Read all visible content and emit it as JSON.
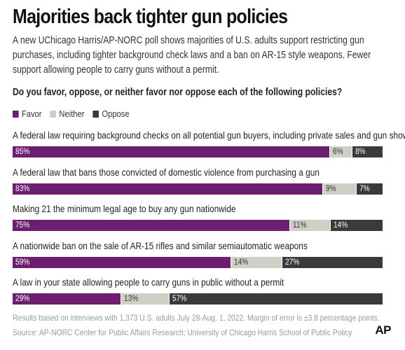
{
  "header": {
    "title": "Majorities back tighter gun policies",
    "subtitle": "A new UChicago Harris/AP-NORC poll shows majorities of U.S. adults support restricting gun purchases, including tighter background check laws and a ban on AR-15 style weapons. Fewer support allowing people to carry guns without a permit.",
    "question": "Do you favor, oppose, or neither favor nor oppose each of the following policies?"
  },
  "colors": {
    "favor": "#6b1f6e",
    "neither": "#cfcfc6",
    "oppose": "#3a3a3a"
  },
  "chart_data": {
    "type": "bar",
    "orientation": "horizontal",
    "stacked": true,
    "unit": "%",
    "legend_position": "top-left",
    "categories": [
      "A federal law requiring background checks on all potential gun buyers, including private sales and gun shows",
      "A federal law that bans those convicted of domestic violence from purchasing a gun",
      "Making 21 the minimum legal age to buy any gun nationwide",
      "A nationwide ban on the sale of AR-15 rifles and similar semiautomatic weapons",
      "A law in your state allowing people to carry guns in public without a permit"
    ],
    "series": [
      {
        "name": "Favor",
        "values": [
          85,
          83,
          75,
          59,
          29
        ],
        "labels": [
          "85%",
          "83%",
          "75%",
          "59%",
          "29%"
        ]
      },
      {
        "name": "Neither",
        "values": [
          6,
          9,
          11,
          14,
          13
        ],
        "labels": [
          "6%",
          "9%",
          "11%",
          "14%",
          "13%"
        ]
      },
      {
        "name": "Oppose",
        "values": [
          8,
          7,
          14,
          27,
          57
        ],
        "labels": [
          "8%",
          "7%",
          "14%",
          "27%",
          "57%"
        ]
      }
    ]
  },
  "footer": {
    "note": "Results based on interviews with 1,373 U.S. adults July 28-Aug. 1, 2022. Margin of error is ±3.8 percentage points.",
    "source": "Source: AP-NORC Center for Public Affairs Research; University of Chicago Harris School of Public Policy",
    "logo": "AP"
  }
}
